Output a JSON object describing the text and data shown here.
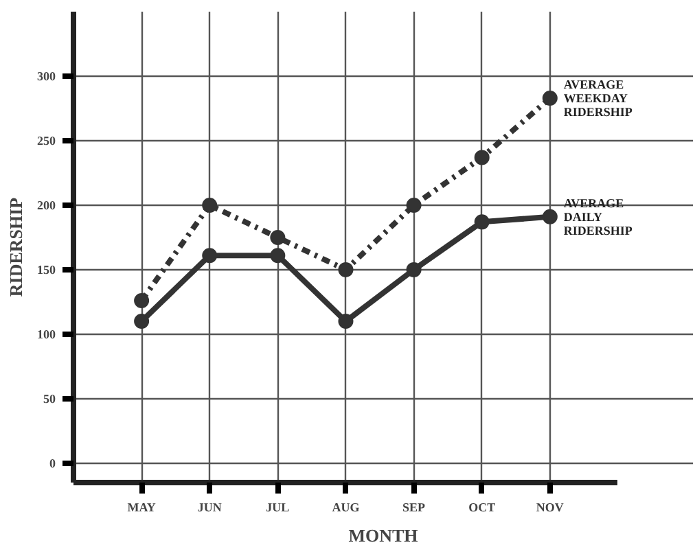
{
  "chart_data": {
    "type": "line",
    "xlabel": "MONTH",
    "ylabel": "RIDERSHIP",
    "categories": [
      "MAY",
      "JUN",
      "JUL",
      "AUG",
      "SEP",
      "OCT",
      "NOV"
    ],
    "series": [
      {
        "name": "AVERAGE WEEKDAY RIDERSHIP",
        "color": "#333333",
        "line_style": "dashdot",
        "values": [
          126,
          200,
          175,
          150,
          200,
          237,
          283
        ]
      },
      {
        "name": "AVERAGE DAILY RIDERSHIP",
        "color": "#333333",
        "line_style": "solid",
        "values": [
          110,
          161,
          161,
          110,
          150,
          187,
          191
        ]
      }
    ],
    "ylim": [
      -15,
      350
    ],
    "yticks": [
      0,
      50,
      100,
      150,
      200,
      250,
      300
    ],
    "grid": true,
    "legend": false,
    "marker": "circle"
  }
}
